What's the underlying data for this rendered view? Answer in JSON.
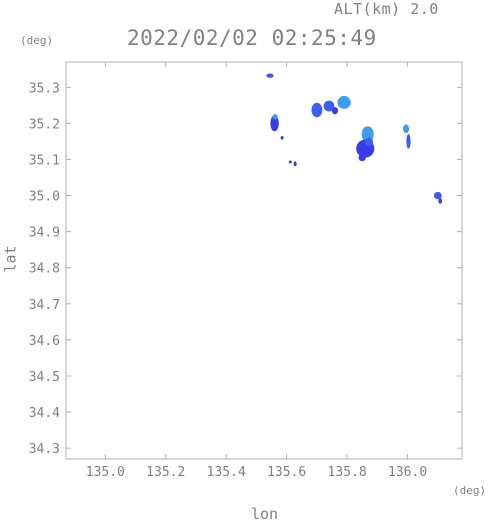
{
  "header": {
    "altitude_label": "ALT(km) 2.0",
    "timestamp": "2022/02/02 02:25:49"
  },
  "axes": {
    "y_unit": "(deg)",
    "x_unit": "(deg)",
    "xlabel": "lon",
    "ylabel": "lat"
  },
  "chart_data": {
    "type": "scatter",
    "xlabel": "lon",
    "ylabel": "lat",
    "xlim": [
      134.87,
      136.18
    ],
    "ylim": [
      34.27,
      35.37
    ],
    "x_ticks": [
      "135.0",
      "135.2",
      "135.4",
      "135.6",
      "135.8",
      "136.0"
    ],
    "x_tick_values": [
      135.0,
      135.2,
      135.4,
      135.6,
      135.8,
      136.0
    ],
    "y_ticks": [
      "34.3",
      "34.4",
      "34.5",
      "34.6",
      "34.7",
      "34.8",
      "34.9",
      "35.0",
      "35.1",
      "35.2",
      "35.3"
    ],
    "y_tick_values": [
      34.3,
      34.4,
      34.5,
      34.6,
      34.7,
      34.8,
      34.9,
      35.0,
      35.1,
      35.2,
      35.3
    ],
    "grid": false,
    "colors": {
      "echo_low": "#3a3ae8",
      "echo_mid": "#3c5ef0",
      "echo_high": "#3b9cf2",
      "axis": "#b0b0b0"
    },
    "echoes": [
      {
        "lon": 135.545,
        "lat": 35.332,
        "rlon": 0.012,
        "rlat": 0.006,
        "level": "mid"
      },
      {
        "lon": 135.56,
        "lat": 35.2,
        "rlon": 0.014,
        "rlat": 0.022,
        "level": "low"
      },
      {
        "lon": 135.562,
        "lat": 35.218,
        "rlon": 0.008,
        "rlat": 0.008,
        "level": "high"
      },
      {
        "lon": 135.585,
        "lat": 35.16,
        "rlon": 0.004,
        "rlat": 0.005,
        "level": "low"
      },
      {
        "lon": 135.628,
        "lat": 35.088,
        "rlon": 0.005,
        "rlat": 0.007,
        "level": "low"
      },
      {
        "lon": 135.612,
        "lat": 35.093,
        "rlon": 0.002,
        "rlat": 0.003,
        "level": "low"
      },
      {
        "lon": 135.7,
        "lat": 35.237,
        "rlon": 0.018,
        "rlat": 0.02,
        "level": "mid"
      },
      {
        "lon": 135.74,
        "lat": 35.248,
        "rlon": 0.018,
        "rlat": 0.015,
        "level": "mid"
      },
      {
        "lon": 135.79,
        "lat": 35.258,
        "rlon": 0.022,
        "rlat": 0.018,
        "level": "high"
      },
      {
        "lon": 135.76,
        "lat": 35.235,
        "rlon": 0.01,
        "rlat": 0.01,
        "level": "low"
      },
      {
        "lon": 135.868,
        "lat": 35.17,
        "rlon": 0.02,
        "rlat": 0.022,
        "level": "high"
      },
      {
        "lon": 135.86,
        "lat": 35.13,
        "rlon": 0.03,
        "rlat": 0.025,
        "level": "low"
      },
      {
        "lon": 135.872,
        "lat": 35.148,
        "rlon": 0.014,
        "rlat": 0.012,
        "level": "mid"
      },
      {
        "lon": 135.85,
        "lat": 35.105,
        "rlon": 0.012,
        "rlat": 0.01,
        "level": "low"
      },
      {
        "lon": 135.995,
        "lat": 35.185,
        "rlon": 0.01,
        "rlat": 0.012,
        "level": "high"
      },
      {
        "lon": 136.003,
        "lat": 35.15,
        "rlon": 0.007,
        "rlat": 0.02,
        "level": "mid"
      },
      {
        "lon": 136.1,
        "lat": 35.0,
        "rlon": 0.013,
        "rlat": 0.01,
        "level": "mid"
      },
      {
        "lon": 136.108,
        "lat": 34.985,
        "rlon": 0.006,
        "rlat": 0.008,
        "level": "low"
      }
    ]
  }
}
